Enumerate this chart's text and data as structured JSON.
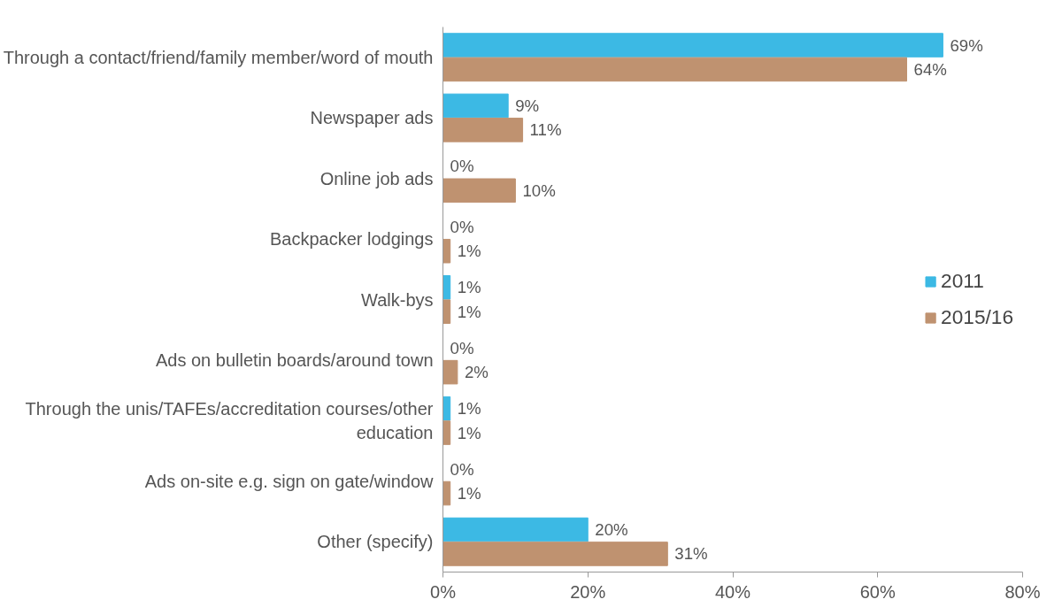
{
  "chart_data": {
    "type": "bar",
    "orientation": "horizontal",
    "categories": [
      "Through a contact/friend/family member/word of mouth",
      "Newspaper ads",
      "Online job ads",
      "Backpacker lodgings",
      "Walk-bys",
      "Ads on bulletin boards/around town",
      "Through the unis/TAFEs/accreditation courses/other education",
      "Ads on-site e.g. sign on gate/window",
      "Other (specify)"
    ],
    "series": [
      {
        "name": "2011",
        "color": "#3cb9e4",
        "values": [
          69,
          9,
          0,
          0,
          1,
          0,
          1,
          0,
          20
        ],
        "value_labels": [
          "69%",
          "9%",
          "0%",
          "0%",
          "1%",
          "0%",
          "1%",
          "0%",
          "20%"
        ]
      },
      {
        "name": "2015/16",
        "color": "#bf9270",
        "values": [
          64,
          11,
          10,
          1,
          1,
          2,
          1,
          1,
          31
        ],
        "value_labels": [
          "64%",
          "11%",
          "10%",
          "1%",
          "1%",
          "2%",
          "1%",
          "1%",
          "31%"
        ]
      }
    ],
    "xlim": [
      0,
      80
    ],
    "xticks": [
      {
        "value": 0,
        "label": "0%"
      },
      {
        "value": 20,
        "label": "20%"
      },
      {
        "value": 40,
        "label": "40%"
      },
      {
        "value": 60,
        "label": "60%"
      },
      {
        "value": 80,
        "label": "80%"
      }
    ],
    "grid": false,
    "legend": "right"
  }
}
